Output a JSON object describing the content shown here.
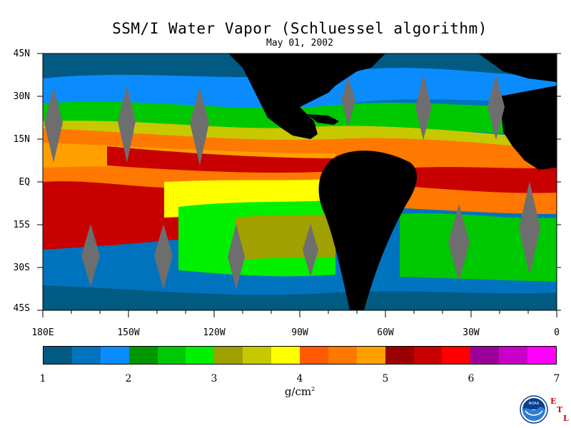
{
  "title": "SSM/I Water Vapor (Schluessel algorithm)",
  "date": "May 01, 2002",
  "lat_labels": [
    "45N",
    "30N",
    "15N",
    "EQ",
    "15S",
    "30S",
    "45S"
  ],
  "lon_labels": [
    "180E",
    "150W",
    "120W",
    "90W",
    "60W",
    "30W",
    "0"
  ],
  "colorbar": {
    "ticks": [
      "1",
      "2",
      "3",
      "4",
      "5",
      "6",
      "7"
    ],
    "units_text": "g/cm",
    "units_sup": "2",
    "colors": [
      "#005a82",
      "#0073be",
      "#0a8cff",
      "#009600",
      "#00c800",
      "#00f000",
      "#a0a000",
      "#c8c800",
      "#ffff00",
      "#ff5a00",
      "#ff7800",
      "#ffa000",
      "#9b0000",
      "#c80000",
      "#ff0000",
      "#9b009b",
      "#c800c8",
      "#ff00ff"
    ]
  },
  "logo": {
    "name": "NOAA",
    "letters": [
      "E",
      "T",
      "L"
    ]
  },
  "map": {
    "land_color": "#000000",
    "swath_gap_color": "#6e6e6e"
  }
}
